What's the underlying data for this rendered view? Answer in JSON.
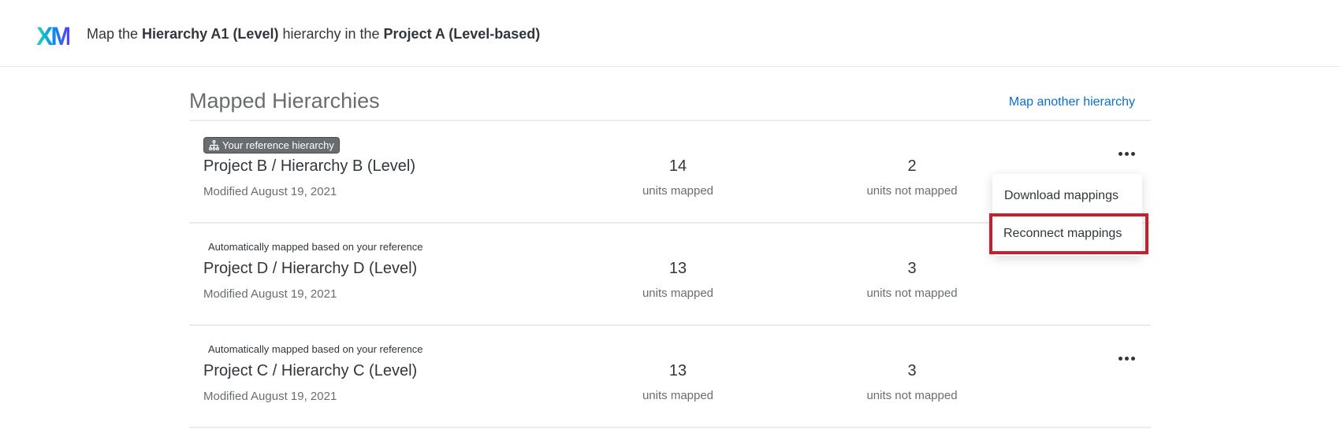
{
  "header": {
    "logo": "XM",
    "title_parts": [
      "Map the ",
      "Hierarchy A1 (Level)",
      " hierarchy in the ",
      "Project A (Level-based)"
    ]
  },
  "section": {
    "title": "Mapped Hierarchies",
    "map_another_label": "Map another hierarchy",
    "link_color": "#0b6fce"
  },
  "rows": [
    {
      "tag": "Your reference hierarchy",
      "tag_icon": "hierarchy-icon",
      "title": "Project B / Hierarchy B (Level)",
      "modified": "Modified August 19, 2021",
      "mapped": "14",
      "mapped_label": "units mapped",
      "not_mapped": "2",
      "not_mapped_label": "units not mapped"
    },
    {
      "note": "Automatically mapped based on your reference",
      "title": "Project D / Hierarchy D (Level)",
      "modified": "Modified August 19, 2021",
      "mapped": "13",
      "mapped_label": "units mapped",
      "not_mapped": "3",
      "not_mapped_label": "units not mapped"
    },
    {
      "note": "Automatically mapped based on your reference",
      "title": "Project C / Hierarchy C (Level)",
      "modified": "Modified August 19, 2021",
      "mapped": "13",
      "mapped_label": "units mapped",
      "not_mapped": "3",
      "not_mapped_label": "units not mapped"
    }
  ],
  "menu": {
    "items": [
      "Download mappings",
      "Reconnect mappings"
    ],
    "highlighted": "Reconnect mappings",
    "highlight_color": "#c4202e"
  }
}
